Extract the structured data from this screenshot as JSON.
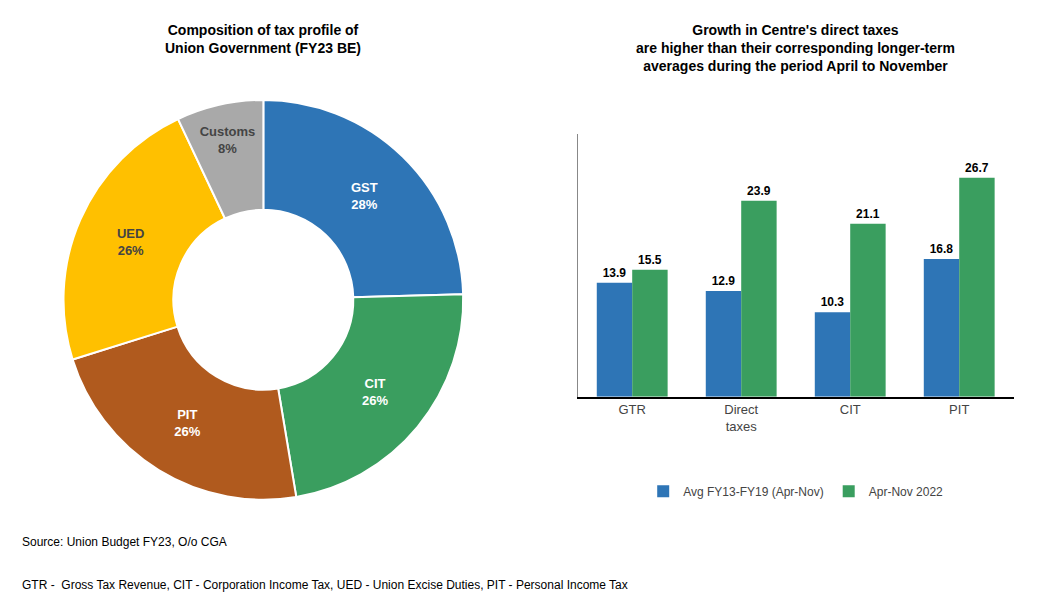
{
  "chart_data": [
    {
      "type": "pie",
      "title": "Composition of tax profile of\nUnion Government (FY23 BE)",
      "categories": [
        "GST",
        "CIT",
        "PIT",
        "UED",
        "Customs"
      ],
      "values": [
        28,
        26,
        26,
        26,
        8
      ],
      "value_labels": [
        "28%",
        "26%",
        "26%",
        "26%",
        "8%"
      ],
      "colors": [
        "#2e75b6",
        "#3a9e5f",
        "#b05a1e",
        "#ffc000",
        "#a9a9a9"
      ],
      "data_labels": true
    },
    {
      "type": "bar",
      "title": "Growth in Centre's direct taxes\nare higher than their corresponding longer-term\naverages during the period April to November",
      "categories": [
        "GTR",
        "Direct\ntaxes",
        "CIT",
        "PIT"
      ],
      "series": [
        {
          "name": "Avg FY13-FY19 (Apr-Nov)",
          "color": "#2e75b6",
          "values": [
            13.9,
            12.9,
            10.3,
            16.8
          ]
        },
        {
          "name": "Apr-Nov 2022",
          "color": "#3a9e5f",
          "values": [
            15.5,
            23.9,
            21.1,
            26.7
          ]
        }
      ],
      "ylim": [
        0,
        32
      ],
      "grid": false,
      "legend": "bottom",
      "data_labels": true,
      "tick_labels": "x",
      "annotations": [
        "Source: Union Budget FY23, O/o CGA",
        "GTR -  Gross Tax Revenue, CIT - Corporation Income Tax, UED - Union Excise Duties, PIT - Personal Income Tax"
      ]
    }
  ]
}
